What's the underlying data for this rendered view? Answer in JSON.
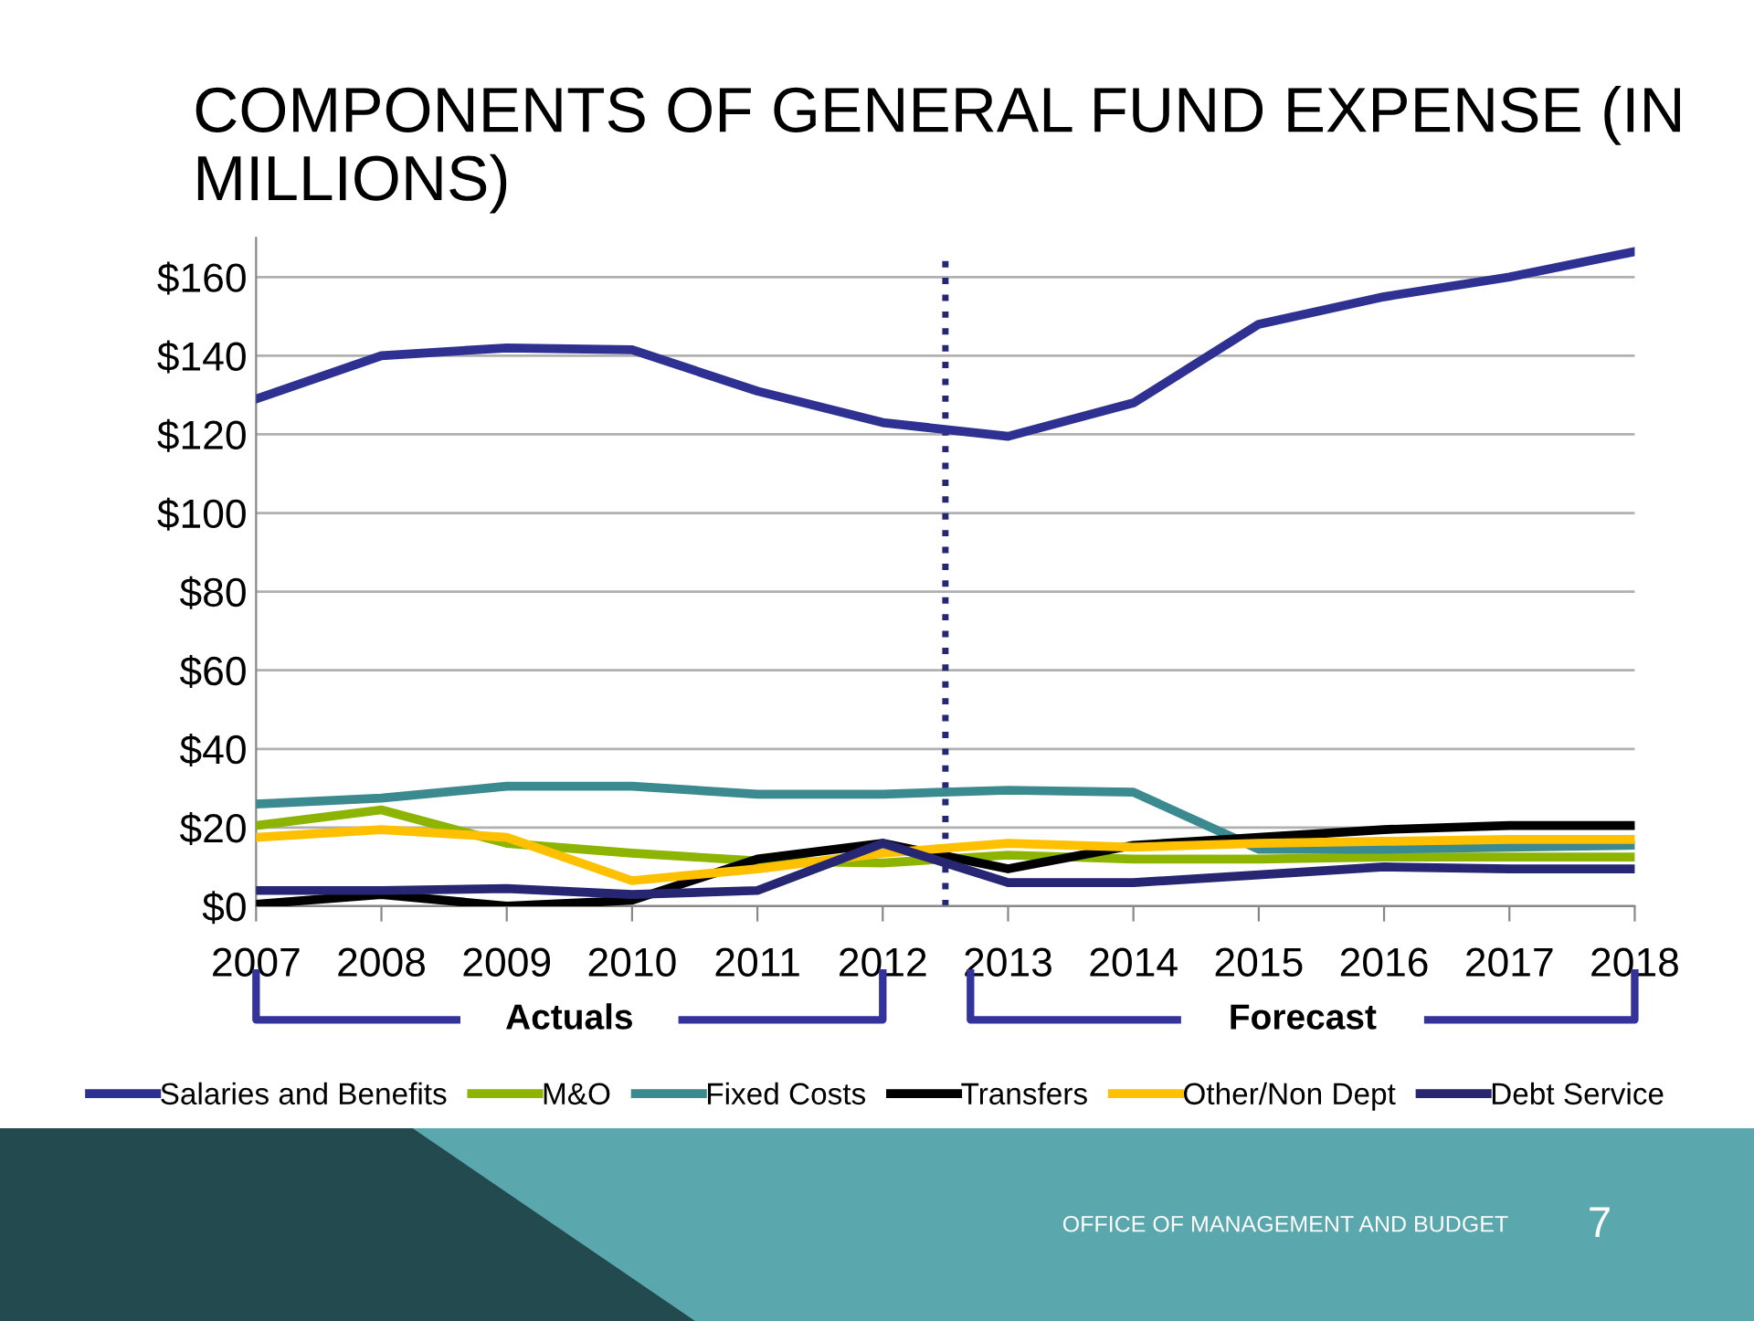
{
  "chart_data": {
    "type": "line",
    "title": "COMPONENTS OF GENERAL FUND EXPENSE (IN MILLIONS)",
    "x": [
      2007,
      2008,
      2009,
      2010,
      2011,
      2012,
      2013,
      2014,
      2015,
      2016,
      2017,
      2018
    ],
    "series": [
      {
        "name": "Salaries and Benefits",
        "color": "#2e3192",
        "values": [
          129,
          140,
          142,
          141.5,
          131,
          123,
          119.5,
          128,
          148,
          155,
          160,
          166.5
        ]
      },
      {
        "name": "M&O",
        "color": "#8cb400",
        "values": [
          20.5,
          24.5,
          16,
          13.5,
          11.5,
          11,
          13,
          12,
          12,
          12.5,
          12.5,
          12.5
        ]
      },
      {
        "name": "Fixed Costs",
        "color": "#3a8a8f",
        "values": [
          26,
          27.5,
          30.5,
          30.5,
          28.5,
          28.5,
          29.5,
          29,
          14.5,
          14.5,
          15,
          15.5
        ]
      },
      {
        "name": "Transfers",
        "color": "#000000",
        "values": [
          0.5,
          3,
          0,
          1.5,
          12,
          16,
          9.5,
          15.5,
          17.5,
          19.5,
          20.5,
          20.5
        ]
      },
      {
        "name": "Other/Non Dept",
        "color": "#ffc000",
        "values": [
          17.5,
          19.5,
          17.5,
          6.5,
          9.5,
          13.5,
          16,
          15,
          16,
          16.5,
          17,
          17
        ]
      },
      {
        "name": "Debt Service",
        "color": "#262673",
        "values": [
          4,
          4,
          4.5,
          3,
          4,
          16,
          6,
          6,
          8,
          10,
          9.5,
          9.5
        ]
      }
    ],
    "xlim": [
      2007,
      2018
    ],
    "xticks": [
      2007,
      2008,
      2009,
      2010,
      2011,
      2012,
      2013,
      2014,
      2015,
      2016,
      2017,
      2018
    ],
    "ylim": [
      0,
      170
    ],
    "yticks": [
      {
        "value": 0,
        "label": "$0"
      },
      {
        "value": 20,
        "label": "$20"
      },
      {
        "value": 40,
        "label": "$40"
      },
      {
        "value": 60,
        "label": "$60"
      },
      {
        "value": 80,
        "label": "$80"
      },
      {
        "value": 100,
        "label": "$100"
      },
      {
        "value": 120,
        "label": "$120"
      },
      {
        "value": 140,
        "label": "$140"
      },
      {
        "value": 160,
        "label": "$160"
      }
    ],
    "ref_lines": [
      {
        "axis": "x",
        "value": 2012.5,
        "color": "#262673",
        "line_style": "dotted"
      }
    ],
    "grid": "y",
    "legend": "bottom",
    "marker": "none",
    "line_style": "solid",
    "annotations": [
      "Actuals",
      "Forecast",
      "OFFICE OF MANAGEMENT AND BUDGET",
      "7"
    ]
  }
}
